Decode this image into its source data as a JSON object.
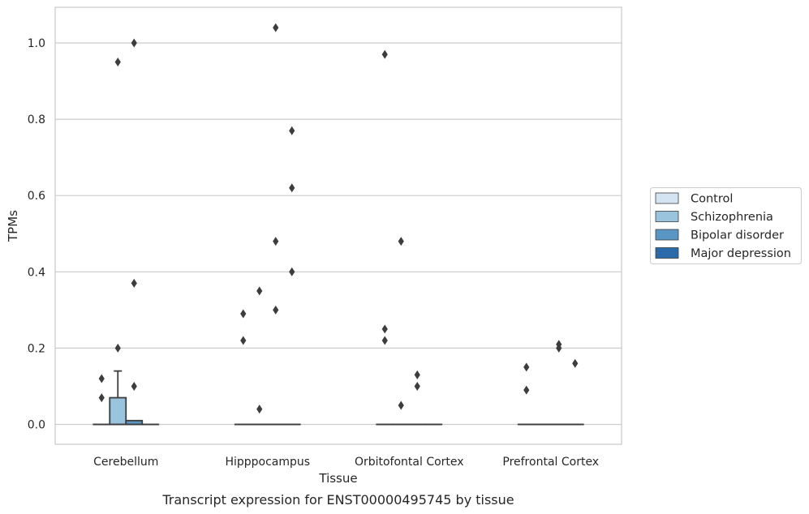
{
  "chart_data": {
    "type": "box",
    "title": "",
    "caption": "Transcript expression for ENST00000495745 by tissue",
    "xlabel": "Tissue",
    "ylabel": "TPMs",
    "ylim": [
      -0.05,
      1.09
    ],
    "yticks": [
      0.0,
      0.2,
      0.4,
      0.6,
      0.8,
      1.0
    ],
    "ytick_labels": [
      "0.0",
      "0.2",
      "0.4",
      "0.6",
      "0.8",
      "1.0"
    ],
    "grid": true,
    "legend_position": "right",
    "categories": [
      "Cerebellum",
      "Hipppocampus",
      "Orbitofontal Cortex",
      "Prefrontal Cortex"
    ],
    "series": [
      {
        "name": "Control",
        "color": "#d4e4f2",
        "boxes": [
          {
            "q1": 0,
            "median": 0,
            "q3": 0,
            "whisker_low": 0,
            "whisker_high": 0,
            "outliers": [
              0.07,
              0.12
            ]
          },
          {
            "q1": 0,
            "median": 0,
            "q3": 0,
            "whisker_low": 0,
            "whisker_high": 0,
            "outliers": [
              0.22,
              0.29
            ]
          },
          {
            "q1": 0,
            "median": 0,
            "q3": 0,
            "whisker_low": 0,
            "whisker_high": 0,
            "outliers": [
              0.97,
              0.25,
              0.22
            ]
          },
          {
            "q1": 0,
            "median": 0,
            "q3": 0,
            "whisker_low": 0,
            "whisker_high": 0,
            "outliers": [
              0.15,
              0.09
            ]
          }
        ]
      },
      {
        "name": "Schizophrenia",
        "color": "#9ac3de",
        "boxes": [
          {
            "q1": 0,
            "median": 0,
            "q3": 0.07,
            "whisker_low": 0,
            "whisker_high": 0.14,
            "outliers": [
              0.2,
              0.95
            ]
          },
          {
            "q1": 0,
            "median": 0,
            "q3": 0,
            "whisker_low": 0,
            "whisker_high": 0,
            "outliers": [
              0.35,
              0.04
            ]
          },
          {
            "q1": 0,
            "median": 0,
            "q3": 0,
            "whisker_low": 0,
            "whisker_high": 0,
            "outliers": [
              0.48,
              0.05
            ]
          },
          {
            "q1": 0,
            "median": 0,
            "q3": 0,
            "whisker_low": 0,
            "whisker_high": 0,
            "outliers": []
          }
        ]
      },
      {
        "name": "Bipolar disorder",
        "color": "#5a96c4",
        "boxes": [
          {
            "q1": 0,
            "median": 0,
            "q3": 0.01,
            "whisker_low": 0,
            "whisker_high": 0.01,
            "outliers": [
              0.37,
              0.1,
              1.0
            ]
          },
          {
            "q1": 0,
            "median": 0,
            "q3": 0,
            "whisker_low": 0,
            "whisker_high": 0,
            "outliers": [
              1.04,
              0.48,
              0.3
            ]
          },
          {
            "q1": 0,
            "median": 0,
            "q3": 0,
            "whisker_low": 0,
            "whisker_high": 0,
            "outliers": [
              0.13,
              0.1
            ]
          },
          {
            "q1": 0,
            "median": 0,
            "q3": 0,
            "whisker_low": 0,
            "whisker_high": 0,
            "outliers": [
              0.21,
              0.2
            ]
          }
        ]
      },
      {
        "name": "Major depression",
        "color": "#2b6aa8",
        "boxes": [
          {
            "q1": 0,
            "median": 0,
            "q3": 0,
            "whisker_low": 0,
            "whisker_high": 0,
            "outliers": []
          },
          {
            "q1": 0,
            "median": 0,
            "q3": 0,
            "whisker_low": 0,
            "whisker_high": 0,
            "outliers": [
              0.77,
              0.62,
              0.4
            ]
          },
          {
            "q1": 0,
            "median": 0,
            "q3": 0,
            "whisker_low": 0,
            "whisker_high": 0,
            "outliers": []
          },
          {
            "q1": 0,
            "median": 0,
            "q3": 0,
            "whisker_low": 0,
            "whisker_high": 0,
            "outliers": [
              0.16
            ]
          }
        ]
      }
    ]
  }
}
